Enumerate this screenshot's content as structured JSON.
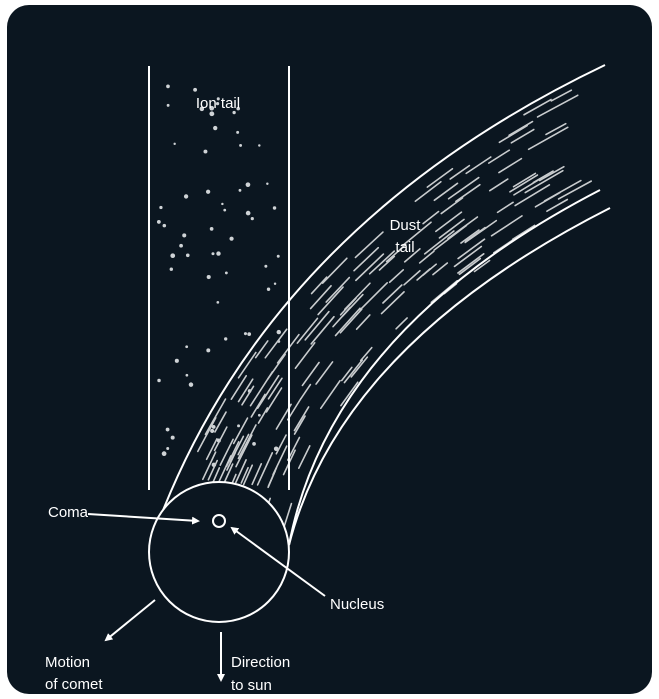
{
  "labels": {
    "ion_tail": "Ion tail",
    "dust_tail": [
      "Dust",
      "tail"
    ],
    "coma": "Coma",
    "nucleus": "Nucleus",
    "motion": [
      "Motion",
      "of comet"
    ],
    "direction": [
      "Direction",
      "to sun"
    ]
  }
}
